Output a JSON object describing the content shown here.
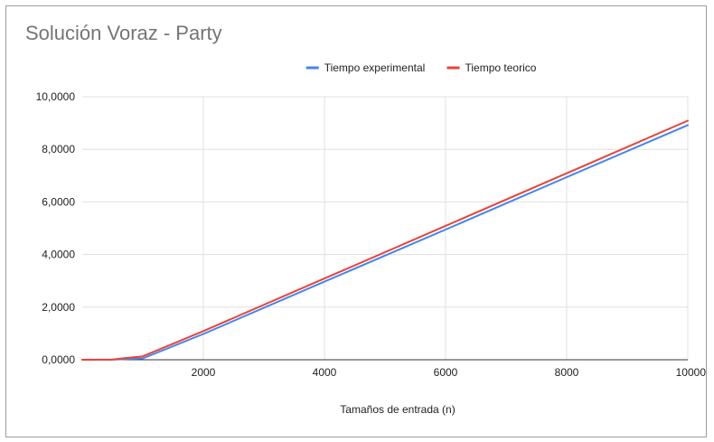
{
  "chart_data": {
    "type": "line",
    "title": "Solución Voraz - Party",
    "xlabel": "Tamaños de entrada (n)",
    "ylabel": "",
    "xlim": [
      0,
      10000
    ],
    "ylim": [
      0,
      10
    ],
    "x_ticks": [
      2000,
      4000,
      6000,
      8000,
      10000
    ],
    "x_tick_labels": [
      "2000",
      "4000",
      "6000",
      "8000",
      "10000"
    ],
    "y_ticks": [
      0,
      2,
      4,
      6,
      8,
      10
    ],
    "y_tick_labels": [
      "0,0000",
      "2,0000",
      "4,0000",
      "6,0000",
      "8,0000",
      "10,0000"
    ],
    "grid": true,
    "legend_position": "top",
    "series": [
      {
        "name": "Tiempo experimental",
        "color": "#4285f4",
        "x": [
          0,
          500,
          1000,
          2000,
          4000,
          6000,
          8000,
          10000
        ],
        "y": [
          0,
          0.005,
          0.05,
          0.98,
          2.97,
          4.95,
          6.94,
          8.92
        ]
      },
      {
        "name": "Tiempo teorico",
        "color": "#ea4335",
        "x": [
          0,
          500,
          1000,
          2000,
          4000,
          6000,
          8000,
          10000
        ],
        "y": [
          0,
          0.01,
          0.13,
          1.09,
          3.09,
          5.09,
          7.09,
          9.09
        ]
      }
    ]
  }
}
